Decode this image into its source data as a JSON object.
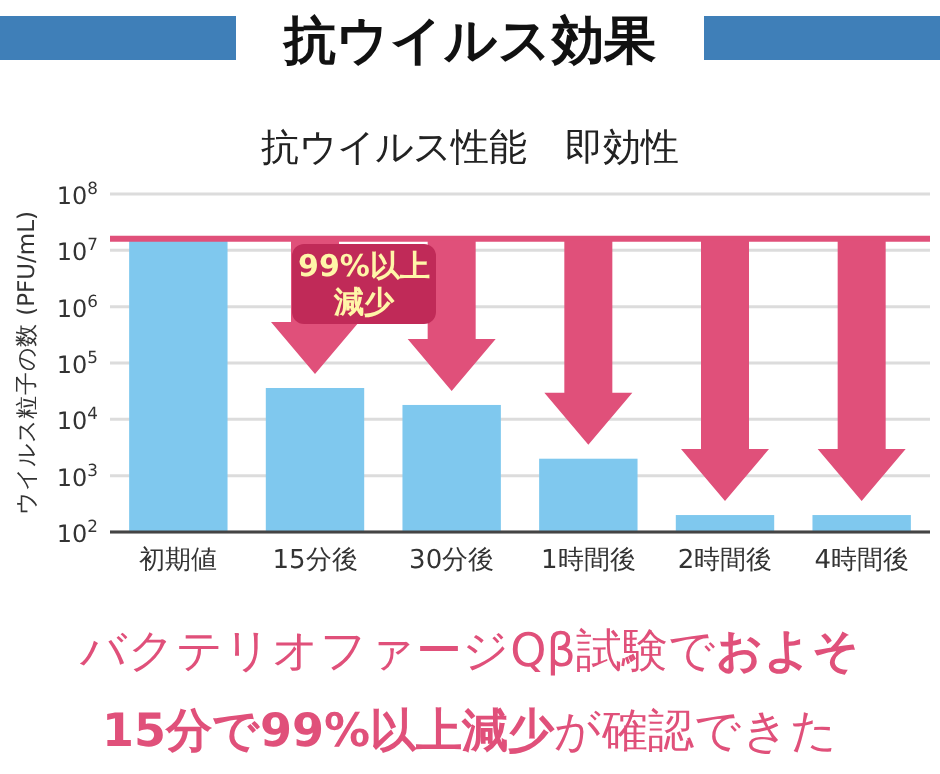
{
  "chart_data": {
    "type": "bar",
    "title": "抗ウイルス効果",
    "subtitle": "抗ウイルス性能　即効性",
    "ylabel": "ウイルス粒子の数 (PFU/mL)",
    "categories": [
      "初期値",
      "15分後",
      "30分後",
      "1時間後",
      "2時間後",
      "4時間後"
    ],
    "values": [
      16000000,
      36000,
      18000,
      2000,
      200,
      200
    ],
    "color": "#7fc8ee",
    "log": "y",
    "grid": "y",
    "ylim": [
      100,
      100000000
    ],
    "yticks": [
      {
        "value": 100,
        "label": "10$^{2}$"
      },
      {
        "value": 1000,
        "label": "10$^{3}$"
      },
      {
        "value": 10000,
        "label": "10$^{4}$"
      },
      {
        "value": 100000,
        "label": "10$^{5}$"
      },
      {
        "value": 1000000,
        "label": "10$^{6}$"
      },
      {
        "value": 10000000,
        "label": "10$^{7}$"
      },
      {
        "value": 100000000,
        "label": "10$^{8}$"
      }
    ],
    "ref_lines": [
      {
        "axis": "y",
        "value": 16000000,
        "color": "#e0507a"
      }
    ],
    "annotations": [
      "99%以上減少",
      "バクテリオファージQβ試験で**およそ**",
      "**15分で99%以上減少**が確認できた"
    ]
  }
}
